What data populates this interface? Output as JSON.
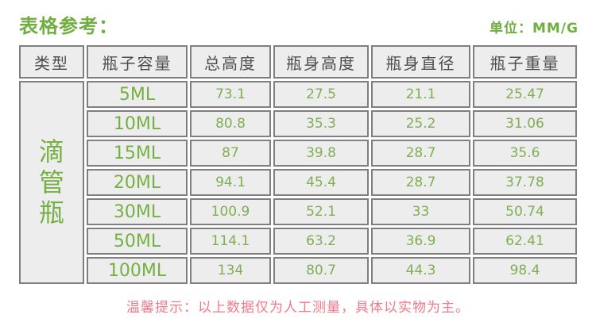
{
  "page": {
    "title": "表格参考：",
    "unit_label": "单位：MM/G",
    "tip": "温馨提示：以上数据仅为人工测量，具体以实物为主。"
  },
  "table": {
    "headers": [
      "类型",
      "瓶子容量",
      "总高度",
      "瓶身高度",
      "瓶身直径",
      "瓶子重量"
    ],
    "type_label": "滴管瓶",
    "rows": [
      {
        "capacity": "5ML",
        "total_height": "73.1",
        "body_height": "27.5",
        "body_diameter": "21.1",
        "weight": "25.47"
      },
      {
        "capacity": "10ML",
        "total_height": "80.8",
        "body_height": "35.3",
        "body_diameter": "25.2",
        "weight": "31.06"
      },
      {
        "capacity": "15ML",
        "total_height": "87",
        "body_height": "39.8",
        "body_diameter": "28.7",
        "weight": "35.6"
      },
      {
        "capacity": "20ML",
        "total_height": "94.1",
        "body_height": "45.4",
        "body_diameter": "28.7",
        "weight": "37.78"
      },
      {
        "capacity": "30ML",
        "total_height": "100.9",
        "body_height": "52.1",
        "body_diameter": "33",
        "weight": "50.74"
      },
      {
        "capacity": "50ML",
        "total_height": "114.1",
        "body_height": "63.2",
        "body_diameter": "36.9",
        "weight": "62.41"
      },
      {
        "capacity": "100ML",
        "total_height": "134",
        "body_height": "80.7",
        "body_diameter": "44.3",
        "weight": "98.4"
      }
    ]
  },
  "colors": {
    "accent_green": "#76b043",
    "number_green": "#7fae53",
    "title_green": "#6fae3f",
    "tip_pink": "#f2798b",
    "header_text": "#4d4d4d",
    "border_gray": "#7f7f7f",
    "cell_background": "#ededed"
  }
}
